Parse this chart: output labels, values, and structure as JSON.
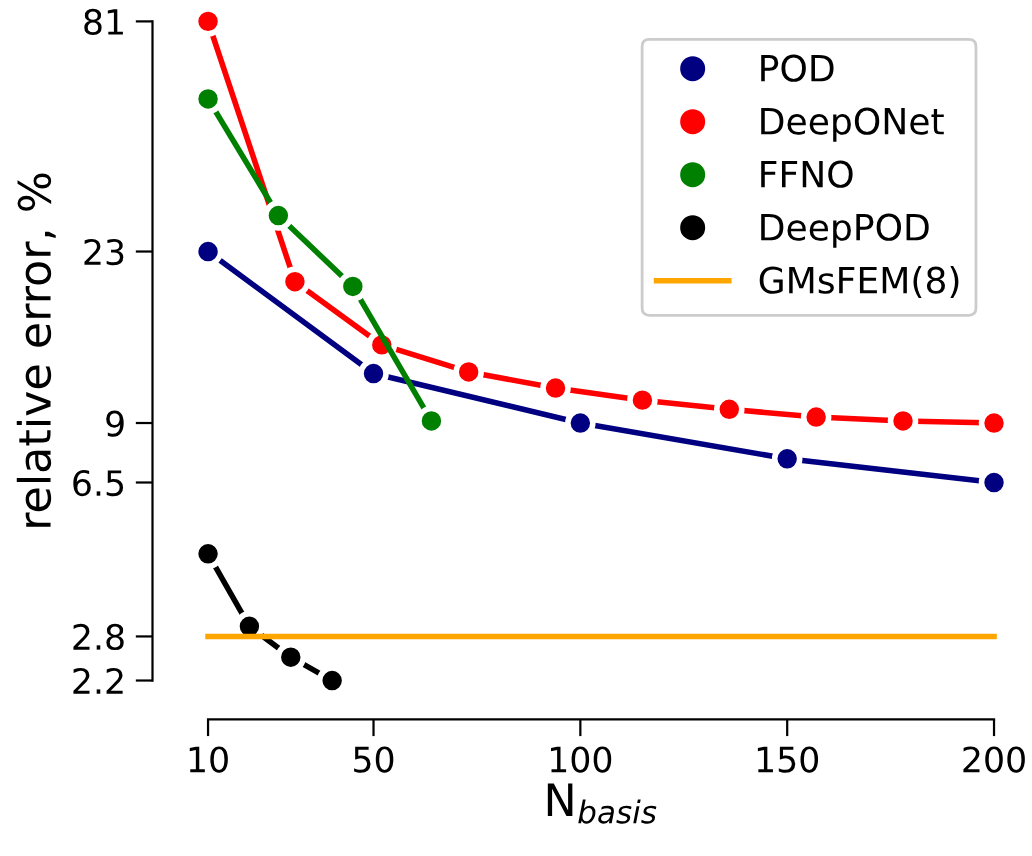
{
  "chart_data": {
    "type": "line",
    "xlabel": "N$_{basis}$",
    "ylabel": "relative error, %",
    "log": "y",
    "xlim": [
      10,
      200
    ],
    "ylim": [
      2.2,
      81
    ],
    "xticks": [
      10,
      50,
      100,
      150,
      200
    ],
    "yticks": [
      2.2,
      2.8,
      6.5,
      9,
      23,
      81
    ],
    "marker": "circle",
    "line_style": "solid",
    "grid": false,
    "legend": "top right",
    "series": [
      {
        "name": "POD",
        "color": "#000080",
        "x": [
          10,
          50,
          100,
          150,
          200
        ],
        "values": [
          23,
          11.8,
          9.0,
          7.4,
          6.5
        ]
      },
      {
        "name": "DeepONet",
        "color": "#ff0000",
        "x": [
          10,
          31,
          52,
          73,
          94,
          115,
          136,
          157,
          178,
          200
        ],
        "values": [
          81,
          19.5,
          13.8,
          11.9,
          10.9,
          10.2,
          9.7,
          9.3,
          9.1,
          9.0
        ]
      },
      {
        "name": "FFNO",
        "color": "#008000",
        "x": [
          10,
          27,
          45,
          64
        ],
        "values": [
          53,
          28,
          19,
          9.1
        ]
      },
      {
        "name": "DeepPOD",
        "color": "#000000",
        "x": [
          10,
          20,
          30,
          40
        ],
        "values": [
          4.4,
          2.96,
          2.5,
          2.2
        ]
      },
      {
        "name": "GMsFEM(8)",
        "color": "#ffa500",
        "marker": "none",
        "x": [
          10,
          200
        ],
        "values": [
          2.8,
          2.8
        ]
      }
    ]
  }
}
